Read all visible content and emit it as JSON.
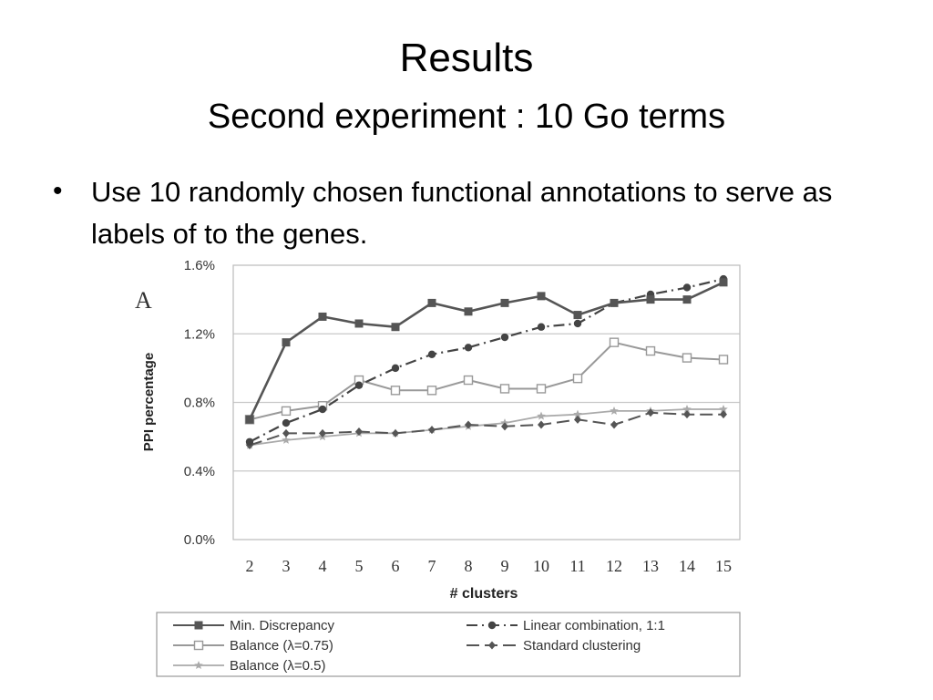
{
  "slide": {
    "title": "Results",
    "subtitle": "Second experiment : 10 Go terms",
    "bullet": "Use 10 randomly chosen functional annotations to serve as labels of to the genes."
  },
  "chart_data": {
    "type": "line",
    "panel_label": "A",
    "xlabel": "# clusters",
    "ylabel": "PPI percentage",
    "x": [
      2,
      3,
      4,
      5,
      6,
      7,
      8,
      9,
      10,
      11,
      12,
      13,
      14,
      15
    ],
    "ylim": [
      0.0,
      1.6
    ],
    "yticks": [
      0.0,
      0.4,
      0.8,
      1.2,
      1.6
    ],
    "ytick_labels": [
      "0.0%",
      "0.4%",
      "0.8%",
      "1.2%",
      "1.6%"
    ],
    "grid": true,
    "legend_position": "bottom",
    "series": [
      {
        "name": "Min. Discrepancy",
        "values": [
          0.7,
          1.15,
          1.3,
          1.26,
          1.24,
          1.38,
          1.33,
          1.38,
          1.42,
          1.31,
          1.38,
          1.4,
          1.4,
          1.5
        ],
        "color": "#555555",
        "marker": "square-filled",
        "dash": "solid",
        "width": 2.6
      },
      {
        "name": "Linear combination, 1:1",
        "values": [
          0.57,
          0.68,
          0.76,
          0.9,
          1.0,
          1.08,
          1.12,
          1.18,
          1.24,
          1.26,
          1.38,
          1.43,
          1.47,
          1.52
        ],
        "color": "#444444",
        "marker": "circle-filled",
        "dash": "dashdot",
        "width": 2.2
      },
      {
        "name": "Balance (λ=0.75)",
        "values": [
          0.7,
          0.75,
          0.78,
          0.93,
          0.87,
          0.87,
          0.93,
          0.88,
          0.88,
          0.94,
          1.15,
          1.1,
          1.06,
          1.05
        ],
        "color": "#999999",
        "marker": "square-open",
        "dash": "solid",
        "width": 2.0
      },
      {
        "name": "Standard clustering",
        "values": [
          0.55,
          0.62,
          0.62,
          0.63,
          0.62,
          0.64,
          0.67,
          0.66,
          0.67,
          0.7,
          0.67,
          0.74,
          0.73,
          0.73
        ],
        "color": "#555555",
        "marker": "diamond",
        "dash": "longdash",
        "width": 2.0
      },
      {
        "name": "Balance (λ=0.5)",
        "values": [
          0.55,
          0.58,
          0.6,
          0.62,
          0.62,
          0.64,
          0.66,
          0.68,
          0.72,
          0.73,
          0.75,
          0.75,
          0.76,
          0.76
        ],
        "color": "#aaaaaa",
        "marker": "star",
        "dash": "solid",
        "width": 1.8
      }
    ],
    "legend_order": [
      0,
      1,
      2,
      3,
      4
    ]
  }
}
